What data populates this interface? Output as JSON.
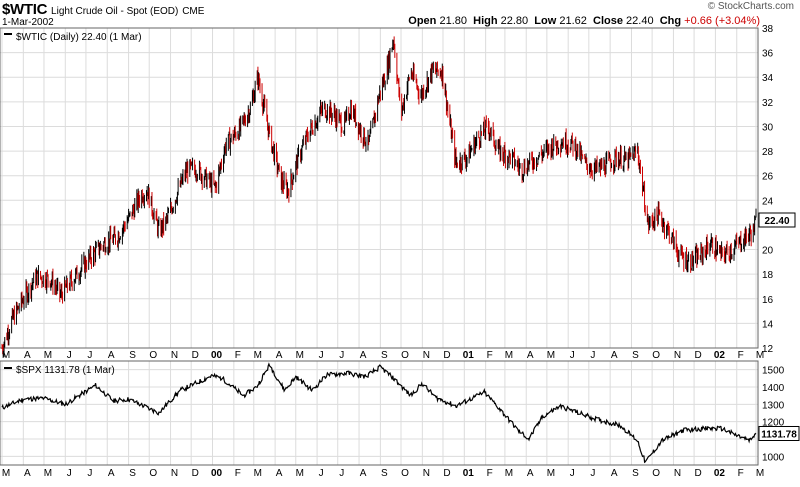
{
  "header": {
    "symbol": "$WTIC",
    "description": "Light Crude Oil - Spot (EOD)",
    "exchange": "CME",
    "date": "1-Mar-2002",
    "logo": "© StockCharts.com",
    "open_label": "Open",
    "open": "21.80",
    "high_label": "High",
    "high": "22.80",
    "low_label": "Low",
    "low": "21.62",
    "close_label": "Close",
    "close": "22.40",
    "chg_label": "Chg",
    "chg": "+0.66 (+3.04%)",
    "chg_color": "#cc0000"
  },
  "chart_data": [
    {
      "type": "candlestick",
      "legend": "$WTIC (Daily) 22.40 (1 Mar)",
      "last_value_label": "22.40",
      "ylim": [
        12,
        38
      ],
      "y_ticks": [
        12,
        14,
        16,
        18,
        20,
        22,
        24,
        26,
        28,
        30,
        32,
        34,
        36,
        38
      ],
      "up_color": "#000000",
      "down_color": "#cc0000",
      "grid": true,
      "x_start": "1999-03-01",
      "x_end": "2002-03-01",
      "x_tick_labels": [
        "M",
        "A",
        "M",
        "J",
        "J",
        "A",
        "S",
        "O",
        "N",
        "D",
        "00",
        "F",
        "M",
        "A",
        "M",
        "J",
        "J",
        "A",
        "S",
        "O",
        "N",
        "D",
        "01",
        "F",
        "M",
        "A",
        "M",
        "J",
        "J",
        "A",
        "S",
        "O",
        "N",
        "D",
        "02",
        "F",
        "M"
      ],
      "bold_tick_labels": [
        "00",
        "01",
        "02"
      ],
      "close_series": [
        [
          "1999-03-01",
          12.0
        ],
        [
          "1999-03-15",
          14.2
        ],
        [
          "1999-04-01",
          16.0
        ],
        [
          "1999-04-20",
          17.8
        ],
        [
          "1999-05-10",
          17.6
        ],
        [
          "1999-05-25",
          16.3
        ],
        [
          "1999-06-15",
          17.8
        ],
        [
          "1999-07-05",
          19.2
        ],
        [
          "1999-07-25",
          20.4
        ],
        [
          "1999-08-15",
          21.0
        ],
        [
          "1999-09-01",
          22.5
        ],
        [
          "1999-09-20",
          24.5
        ],
        [
          "1999-09-28",
          24.8
        ],
        [
          "1999-10-15",
          21.5
        ],
        [
          "1999-10-25",
          22.2
        ],
        [
          "1999-11-10",
          24.5
        ],
        [
          "1999-11-25",
          26.5
        ],
        [
          "1999-12-10",
          26.5
        ],
        [
          "2000-01-05",
          25.0
        ],
        [
          "2000-01-20",
          28.5
        ],
        [
          "2000-02-10",
          29.8
        ],
        [
          "2000-02-25",
          31.5
        ],
        [
          "2000-03-07",
          34.0
        ],
        [
          "2000-03-25",
          29.0
        ],
        [
          "2000-04-10",
          25.5
        ],
        [
          "2000-04-20",
          24.8
        ],
        [
          "2000-05-05",
          27.5
        ],
        [
          "2000-05-20",
          29.5
        ],
        [
          "2000-06-10",
          31.5
        ],
        [
          "2000-06-25",
          31.0
        ],
        [
          "2000-07-10",
          30.0
        ],
        [
          "2000-07-20",
          31.5
        ],
        [
          "2000-08-05",
          29.5
        ],
        [
          "2000-08-15",
          28.5
        ],
        [
          "2000-08-30",
          32.5
        ],
        [
          "2000-09-10",
          34.5
        ],
        [
          "2000-09-20",
          37.2
        ],
        [
          "2000-10-01",
          31.0
        ],
        [
          "2000-10-15",
          34.5
        ],
        [
          "2000-10-30",
          32.5
        ],
        [
          "2000-11-15",
          34.5
        ],
        [
          "2000-11-30",
          34.5
        ],
        [
          "2000-12-10",
          30.5
        ],
        [
          "2000-12-20",
          27.0
        ],
        [
          "2001-01-05",
          27.5
        ],
        [
          "2001-01-20",
          29.0
        ],
        [
          "2001-02-05",
          30.0
        ],
        [
          "2001-02-20",
          28.0
        ],
        [
          "2001-03-10",
          27.5
        ],
        [
          "2001-03-25",
          26.5
        ],
        [
          "2001-04-10",
          27.2
        ],
        [
          "2001-04-25",
          27.8
        ],
        [
          "2001-05-10",
          28.5
        ],
        [
          "2001-05-25",
          28.8
        ],
        [
          "2001-06-10",
          28.5
        ],
        [
          "2001-06-25",
          27.0
        ],
        [
          "2001-07-10",
          26.5
        ],
        [
          "2001-07-25",
          26.8
        ],
        [
          "2001-08-10",
          27.5
        ],
        [
          "2001-08-25",
          27.2
        ],
        [
          "2001-09-10",
          28.0
        ],
        [
          "2001-09-25",
          22.0
        ],
        [
          "2001-10-10",
          22.8
        ],
        [
          "2001-10-25",
          21.5
        ],
        [
          "2001-11-10",
          19.5
        ],
        [
          "2001-11-25",
          19.0
        ],
        [
          "2001-12-10",
          19.5
        ],
        [
          "2001-12-25",
          20.5
        ],
        [
          "2002-01-10",
          19.5
        ],
        [
          "2002-01-25",
          20.0
        ],
        [
          "2002-02-10",
          20.8
        ],
        [
          "2002-02-25",
          21.5
        ],
        [
          "2002-03-01",
          22.4
        ]
      ]
    },
    {
      "type": "line",
      "legend": "$SPX 1131.78 (1 Mar)",
      "last_value_label": "1131.78",
      "ylim": [
        950,
        1550
      ],
      "y_ticks": [
        1000,
        1100,
        1200,
        1300,
        1400,
        1500
      ],
      "line_color": "#000000",
      "series": [
        [
          "1999-03-01",
          1280
        ],
        [
          "1999-04-01",
          1330
        ],
        [
          "1999-05-01",
          1335
        ],
        [
          "1999-06-01",
          1300
        ],
        [
          "1999-07-15",
          1410
        ],
        [
          "1999-08-10",
          1320
        ],
        [
          "1999-09-01",
          1330
        ],
        [
          "1999-10-15",
          1250
        ],
        [
          "1999-11-15",
          1380
        ],
        [
          "1999-12-31",
          1465
        ],
        [
          "2000-01-15",
          1450
        ],
        [
          "2000-02-15",
          1350
        ],
        [
          "2000-03-05",
          1400
        ],
        [
          "2000-03-24",
          1527
        ],
        [
          "2000-04-15",
          1380
        ],
        [
          "2000-05-01",
          1460
        ],
        [
          "2000-05-25",
          1380
        ],
        [
          "2000-06-15",
          1470
        ],
        [
          "2000-07-15",
          1480
        ],
        [
          "2000-08-10",
          1460
        ],
        [
          "2000-09-01",
          1515
        ],
        [
          "2000-09-20",
          1450
        ],
        [
          "2000-10-15",
          1350
        ],
        [
          "2000-11-01",
          1420
        ],
        [
          "2000-11-20",
          1340
        ],
        [
          "2000-12-20",
          1290
        ],
        [
          "2001-01-15",
          1340
        ],
        [
          "2001-01-30",
          1370
        ],
        [
          "2001-02-20",
          1280
        ],
        [
          "2001-03-20",
          1150
        ],
        [
          "2001-04-05",
          1100
        ],
        [
          "2001-04-25",
          1230
        ],
        [
          "2001-05-20",
          1290
        ],
        [
          "2001-06-10",
          1260
        ],
        [
          "2001-07-15",
          1210
        ],
        [
          "2001-08-15",
          1180
        ],
        [
          "2001-09-10",
          1090
        ],
        [
          "2001-09-21",
          965
        ],
        [
          "2001-10-15",
          1090
        ],
        [
          "2001-11-15",
          1150
        ],
        [
          "2001-12-15",
          1160
        ],
        [
          "2002-01-10",
          1160
        ],
        [
          "2002-02-01",
          1120
        ],
        [
          "2002-02-20",
          1090
        ],
        [
          "2002-03-01",
          1131.78
        ]
      ]
    }
  ]
}
